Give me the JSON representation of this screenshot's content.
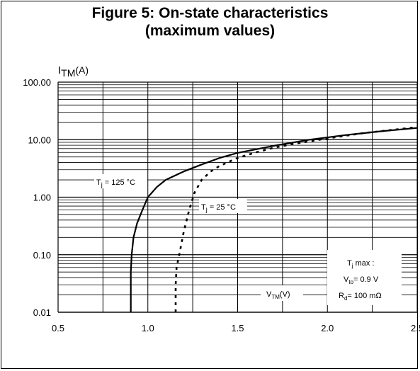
{
  "title_line1": "Figure 5: On-state characteristics",
  "title_line2": "(maximum values)",
  "chart_data": {
    "type": "line",
    "ylabel_main": "I",
    "ylabel_sub": "TM",
    "ylabel_unit": "(A)",
    "xlabel_main": "V",
    "xlabel_sub": "TM",
    "xlabel_unit": "(V)",
    "xlim": [
      0.5,
      2.5
    ],
    "ylim": [
      0.01,
      100
    ],
    "yscale": "log",
    "grid": true,
    "x_ticks": [
      {
        "value": 0.5,
        "label": "0.5"
      },
      {
        "value": 1.0,
        "label": "1.0"
      },
      {
        "value": 1.5,
        "label": "1.5"
      },
      {
        "value": 2.0,
        "label": "2.0"
      },
      {
        "value": 2.5,
        "label": "2.5"
      }
    ],
    "y_ticks": [
      {
        "value": 100,
        "label": "100.00"
      },
      {
        "value": 10,
        "label": "10.00"
      },
      {
        "value": 1,
        "label": "1.00"
      },
      {
        "value": 0.1,
        "label": "0.10"
      },
      {
        "value": 0.01,
        "label": "0.01"
      }
    ],
    "series": [
      {
        "key": "tj125",
        "label_main": "T",
        "label_sub": "j",
        "label_rest": " = 125 °C",
        "style": "solid",
        "x": [
          0.905,
          0.905,
          0.91,
          0.92,
          0.94,
          0.97,
          1.0,
          1.05,
          1.1,
          1.2,
          1.3,
          1.4,
          1.5,
          1.7,
          1.9,
          2.1,
          2.3,
          2.5
        ],
        "y": [
          0.01,
          0.05,
          0.1,
          0.2,
          0.35,
          0.6,
          1.0,
          1.5,
          2.0,
          2.8,
          3.7,
          4.8,
          5.9,
          7.8,
          10.0,
          12.0,
          14.0,
          16.0
        ]
      },
      {
        "key": "tj25",
        "label_main": "T",
        "label_sub": "j",
        "label_rest": " = 25 °C",
        "style": "dotted",
        "x": [
          1.155,
          1.155,
          1.16,
          1.175,
          1.2,
          1.23,
          1.26,
          1.3,
          1.35,
          1.4,
          1.5,
          1.6,
          1.7,
          1.8,
          2.0,
          2.2,
          2.5
        ],
        "y": [
          0.01,
          0.03,
          0.06,
          0.1,
          0.25,
          0.6,
          1.2,
          2.0,
          2.8,
          3.5,
          4.8,
          6.0,
          7.2,
          8.3,
          10.5,
          13.0,
          16.5
        ]
      }
    ],
    "annotation": {
      "line1_main": "T",
      "line1_sub": "j",
      "line1_rest": " max :",
      "line2_main": "V",
      "line2_sub": "to",
      "line2_rest": "= 0.9 V",
      "line3_main": "R",
      "line3_sub": "d",
      "line3_rest": "= 100 mΩ"
    }
  }
}
